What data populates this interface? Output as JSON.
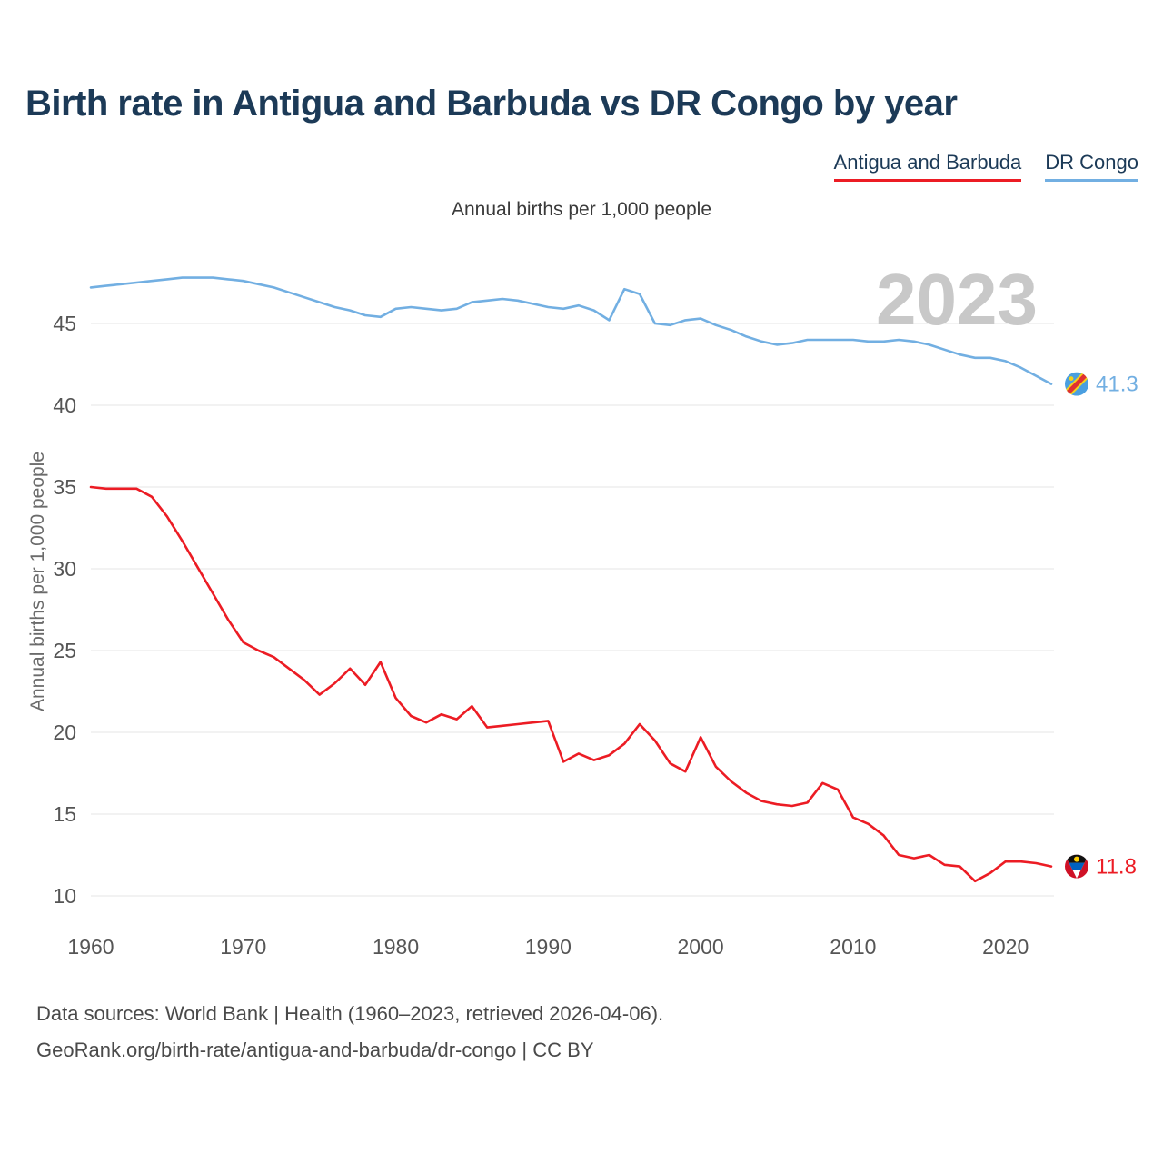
{
  "title": "Birth rate in Antigua and Barbuda vs DR Congo by year",
  "subtitle": "Annual births per 1,000 people",
  "watermark": "2023",
  "legend": {
    "antigua": "Antigua and Barbuda",
    "drcongo": "DR Congo"
  },
  "colors": {
    "antigua_red": "#ec1c24",
    "drcongo_blue": "#72afe2",
    "title_navy": "#1c3a57",
    "watermark_gray": "#c8c8c8",
    "gridline_gray": "#e9e9e9",
    "tick_gray": "#555555"
  },
  "end_labels": {
    "drcongo": "41.3",
    "antigua": "11.8"
  },
  "footer": {
    "line1": "Data sources: World Bank | Health (1960–2023, retrieved 2026-04-06).",
    "line2": "GeoRank.org/birth-rate/antigua-and-barbuda/dr-congo | CC BY"
  },
  "chart_data": {
    "type": "line",
    "title": "Birth rate in Antigua and Barbuda vs DR Congo by year",
    "subtitle": "Annual births per 1,000 people",
    "xlabel": "",
    "ylabel": "Annual births per 1,000 people",
    "grid": true,
    "legend_position": "top-right",
    "ylim": [
      8.5,
      49.5
    ],
    "xticks": [
      1960,
      1970,
      1980,
      1990,
      2000,
      2010,
      2020
    ],
    "yticks": [
      10,
      15,
      20,
      25,
      30,
      35,
      40,
      45
    ],
    "x": [
      1960,
      1961,
      1962,
      1963,
      1964,
      1965,
      1966,
      1967,
      1968,
      1969,
      1970,
      1971,
      1972,
      1973,
      1974,
      1975,
      1976,
      1977,
      1978,
      1979,
      1980,
      1981,
      1982,
      1983,
      1984,
      1985,
      1986,
      1987,
      1988,
      1989,
      1990,
      1991,
      1992,
      1993,
      1994,
      1995,
      1996,
      1997,
      1998,
      1999,
      2000,
      2001,
      2002,
      2003,
      2004,
      2005,
      2006,
      2007,
      2008,
      2009,
      2010,
      2011,
      2012,
      2013,
      2014,
      2015,
      2016,
      2017,
      2018,
      2019,
      2020,
      2021,
      2022,
      2023
    ],
    "series": [
      {
        "id": "antigua",
        "name": "Antigua and Barbuda",
        "color": "#ec1c24",
        "values": [
          35.0,
          34.9,
          34.9,
          34.9,
          34.4,
          33.2,
          31.7,
          30.1,
          28.5,
          26.9,
          25.5,
          25.0,
          24.6,
          23.9,
          23.2,
          22.3,
          23.0,
          23.9,
          22.9,
          24.3,
          22.1,
          21.0,
          20.6,
          21.1,
          20.8,
          21.6,
          20.3,
          20.4,
          20.5,
          20.6,
          20.7,
          18.2,
          18.7,
          18.3,
          18.6,
          19.3,
          20.5,
          19.5,
          18.1,
          17.6,
          19.7,
          17.9,
          17.0,
          16.3,
          15.8,
          15.6,
          15.5,
          15.7,
          16.9,
          16.5,
          14.8,
          14.4,
          13.7,
          12.5,
          12.3,
          12.5,
          11.9,
          11.8,
          10.9,
          11.4,
          12.1,
          12.1,
          12.0,
          11.8
        ]
      },
      {
        "id": "drcongo",
        "name": "DR Congo",
        "color": "#72afe2",
        "values": [
          47.2,
          47.3,
          47.4,
          47.5,
          47.6,
          47.7,
          47.8,
          47.8,
          47.8,
          47.7,
          47.6,
          47.4,
          47.2,
          46.9,
          46.6,
          46.3,
          46.0,
          45.8,
          45.5,
          45.4,
          45.9,
          46.0,
          45.9,
          45.8,
          45.9,
          46.3,
          46.4,
          46.5,
          46.4,
          46.2,
          46.0,
          45.9,
          46.1,
          45.8,
          45.2,
          47.1,
          46.8,
          45.0,
          44.9,
          45.2,
          45.3,
          44.9,
          44.6,
          44.2,
          43.9,
          43.7,
          43.8,
          44.0,
          44.0,
          44.0,
          44.0,
          43.9,
          43.9,
          44.0,
          43.9,
          43.7,
          43.4,
          43.1,
          42.9,
          42.9,
          42.7,
          42.3,
          41.8,
          41.3
        ]
      }
    ]
  }
}
